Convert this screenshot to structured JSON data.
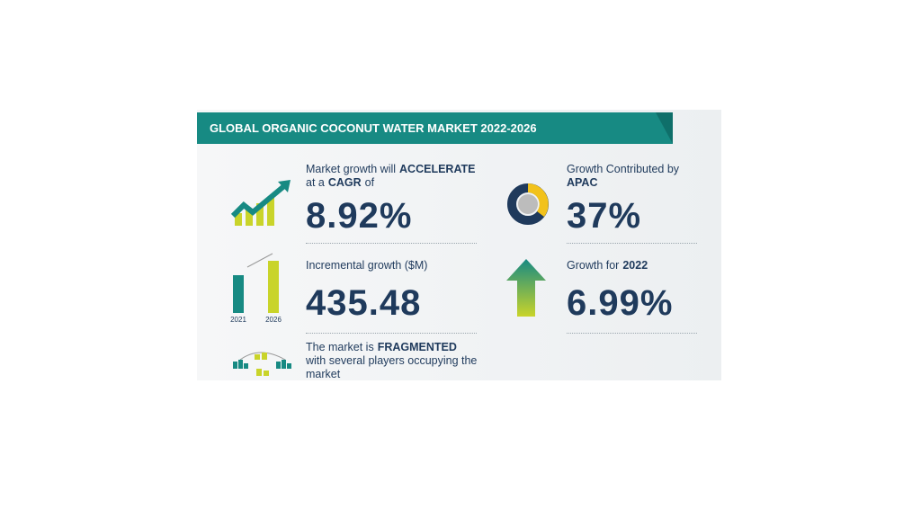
{
  "header": {
    "title": "GLOBAL ORGANIC COCONUT WATER MARKET 2022-2026"
  },
  "cagr": {
    "text1": "Market growth will",
    "emphasis1": "ACCELERATE",
    "text2": "at a",
    "emphasis2": "CAGR",
    "text3": "of",
    "value": "8.92%"
  },
  "incremental": {
    "label": "Incremental growth ($M)",
    "value": "435.48",
    "year_start": "2021",
    "year_end": "2026"
  },
  "fragmented": {
    "text1": "The market is",
    "emphasis": "FRAGMENTED",
    "text2": "with several players occupying the market"
  },
  "region": {
    "label": "Growth Contributed by",
    "emphasis": "APAC",
    "value": "37%"
  },
  "yearly": {
    "label": "Growth for",
    "emphasis": "2022",
    "value": "6.99%"
  }
}
